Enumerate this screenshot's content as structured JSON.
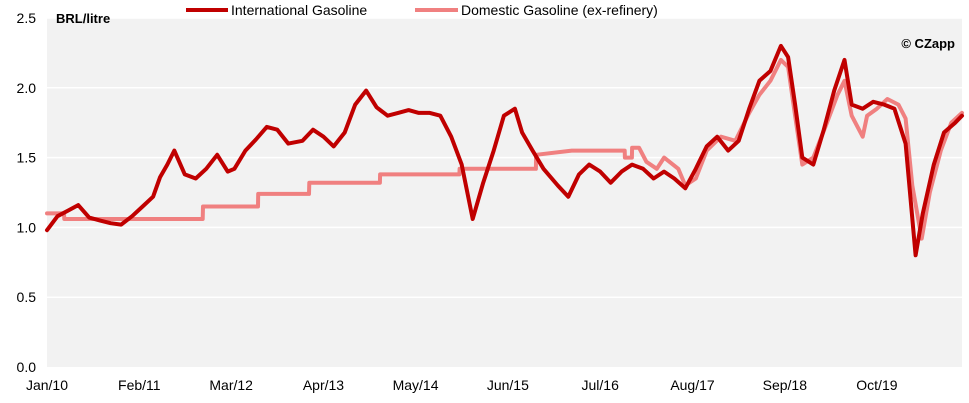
{
  "chart_data": {
    "type": "line",
    "ylabel": "BRL/litre",
    "credit": "© CZapp",
    "ylim": [
      0,
      2.5
    ],
    "yticks": [
      "0.0",
      "0.5",
      "1.0",
      "1.5",
      "2.0",
      "2.5"
    ],
    "ytick_values": [
      0,
      0.5,
      1.0,
      1.5,
      2.0,
      2.5
    ],
    "xlim": [
      "2010-01-01",
      "2020-09-30"
    ],
    "xticks": [
      {
        "date": "2010-01-01",
        "label": "Jan/10"
      },
      {
        "date": "2011-02-01",
        "label": "Feb/11"
      },
      {
        "date": "2012-03-01",
        "label": "Mar/12"
      },
      {
        "date": "2013-04-01",
        "label": "Apr/13"
      },
      {
        "date": "2014-05-01",
        "label": "May/14"
      },
      {
        "date": "2015-06-01",
        "label": "Jun/15"
      },
      {
        "date": "2016-07-01",
        "label": "Jul/16"
      },
      {
        "date": "2017-08-01",
        "label": "Aug/17"
      },
      {
        "date": "2018-09-01",
        "label": "Sep/18"
      },
      {
        "date": "2019-10-01",
        "label": "Oct/19"
      }
    ],
    "grid": "horizontal",
    "legend_position": "top",
    "colors": {
      "international": "#C00000",
      "domestic": "#F08080",
      "plot_background": "#F2F2F2",
      "gridline": "#FFFFFF"
    },
    "series": [
      {
        "name": "International Gasoline",
        "color": "#C00000",
        "points": [
          [
            "2010-01-01",
            0.98
          ],
          [
            "2010-02-15",
            1.08
          ],
          [
            "2010-04-01",
            1.12
          ],
          [
            "2010-05-15",
            1.16
          ],
          [
            "2010-07-01",
            1.07
          ],
          [
            "2010-08-15",
            1.05
          ],
          [
            "2010-10-01",
            1.03
          ],
          [
            "2010-11-15",
            1.02
          ],
          [
            "2011-01-01",
            1.08
          ],
          [
            "2011-02-15",
            1.15
          ],
          [
            "2011-04-01",
            1.22
          ],
          [
            "2011-05-01",
            1.36
          ],
          [
            "2011-06-01",
            1.45
          ],
          [
            "2011-07-01",
            1.55
          ],
          [
            "2011-08-15",
            1.38
          ],
          [
            "2011-10-01",
            1.35
          ],
          [
            "2011-11-15",
            1.42
          ],
          [
            "2012-01-01",
            1.52
          ],
          [
            "2012-02-15",
            1.4
          ],
          [
            "2012-03-15",
            1.42
          ],
          [
            "2012-05-01",
            1.55
          ],
          [
            "2012-06-15",
            1.63
          ],
          [
            "2012-08-01",
            1.72
          ],
          [
            "2012-09-15",
            1.7
          ],
          [
            "2012-11-01",
            1.6
          ],
          [
            "2013-01-01",
            1.62
          ],
          [
            "2013-02-15",
            1.7
          ],
          [
            "2013-04-01",
            1.65
          ],
          [
            "2013-05-15",
            1.58
          ],
          [
            "2013-07-01",
            1.68
          ],
          [
            "2013-08-15",
            1.88
          ],
          [
            "2013-10-01",
            1.98
          ],
          [
            "2013-11-15",
            1.86
          ],
          [
            "2014-01-01",
            1.8
          ],
          [
            "2014-02-15",
            1.82
          ],
          [
            "2014-04-01",
            1.84
          ],
          [
            "2014-05-15",
            1.82
          ],
          [
            "2014-07-01",
            1.82
          ],
          [
            "2014-08-15",
            1.8
          ],
          [
            "2014-10-01",
            1.65
          ],
          [
            "2014-11-15",
            1.45
          ],
          [
            "2015-01-01",
            1.06
          ],
          [
            "2015-02-15",
            1.32
          ],
          [
            "2015-04-01",
            1.55
          ],
          [
            "2015-05-15",
            1.8
          ],
          [
            "2015-07-01",
            1.85
          ],
          [
            "2015-08-01",
            1.68
          ],
          [
            "2015-09-15",
            1.55
          ],
          [
            "2015-11-01",
            1.42
          ],
          [
            "2016-01-01",
            1.3
          ],
          [
            "2016-02-15",
            1.22
          ],
          [
            "2016-04-01",
            1.38
          ],
          [
            "2016-05-15",
            1.45
          ],
          [
            "2016-07-01",
            1.4
          ],
          [
            "2016-08-15",
            1.32
          ],
          [
            "2016-10-01",
            1.4
          ],
          [
            "2016-11-15",
            1.45
          ],
          [
            "2017-01-01",
            1.42
          ],
          [
            "2017-02-15",
            1.35
          ],
          [
            "2017-04-01",
            1.4
          ],
          [
            "2017-05-15",
            1.35
          ],
          [
            "2017-07-01",
            1.28
          ],
          [
            "2017-08-15",
            1.42
          ],
          [
            "2017-10-01",
            1.58
          ],
          [
            "2017-11-15",
            1.65
          ],
          [
            "2018-01-01",
            1.55
          ],
          [
            "2018-02-15",
            1.62
          ],
          [
            "2018-04-01",
            1.85
          ],
          [
            "2018-05-15",
            2.05
          ],
          [
            "2018-07-01",
            2.12
          ],
          [
            "2018-08-15",
            2.3
          ],
          [
            "2018-09-15",
            2.22
          ],
          [
            "2018-10-15",
            1.88
          ],
          [
            "2018-11-15",
            1.5
          ],
          [
            "2019-01-01",
            1.45
          ],
          [
            "2019-02-15",
            1.7
          ],
          [
            "2019-04-01",
            1.98
          ],
          [
            "2019-05-15",
            2.2
          ],
          [
            "2019-06-15",
            1.88
          ],
          [
            "2019-08-01",
            1.85
          ],
          [
            "2019-09-15",
            1.9
          ],
          [
            "2019-11-01",
            1.88
          ],
          [
            "2019-12-15",
            1.85
          ],
          [
            "2020-02-01",
            1.6
          ],
          [
            "2020-03-15",
            0.8
          ],
          [
            "2020-04-15",
            1.1
          ],
          [
            "2020-06-01",
            1.45
          ],
          [
            "2020-07-15",
            1.68
          ],
          [
            "2020-09-01",
            1.75
          ],
          [
            "2020-09-30",
            1.8
          ]
        ]
      },
      {
        "name": "Domestic Gasoline (ex-refinery)",
        "color": "#F08080",
        "points": [
          [
            "2010-01-01",
            1.1
          ],
          [
            "2010-03-15",
            1.1
          ],
          [
            "2010-03-16",
            1.06
          ],
          [
            "2011-10-31",
            1.06
          ],
          [
            "2011-11-01",
            1.15
          ],
          [
            "2012-06-24",
            1.15
          ],
          [
            "2012-06-25",
            1.24
          ],
          [
            "2013-01-29",
            1.24
          ],
          [
            "2013-01-30",
            1.32
          ],
          [
            "2013-11-29",
            1.32
          ],
          [
            "2013-11-30",
            1.38
          ],
          [
            "2014-11-05",
            1.38
          ],
          [
            "2014-11-06",
            1.42
          ],
          [
            "2015-09-29",
            1.42
          ],
          [
            "2015-09-30",
            1.52
          ],
          [
            "2016-03-01",
            1.55
          ],
          [
            "2016-10-14",
            1.55
          ],
          [
            "2016-10-15",
            1.5
          ],
          [
            "2016-11-14",
            1.5
          ],
          [
            "2016-11-15",
            1.57
          ],
          [
            "2016-12-15",
            1.57
          ],
          [
            "2017-01-15",
            1.47
          ],
          [
            "2017-03-01",
            1.42
          ],
          [
            "2017-04-01",
            1.5
          ],
          [
            "2017-06-01",
            1.42
          ],
          [
            "2017-07-01",
            1.3
          ],
          [
            "2017-08-15",
            1.35
          ],
          [
            "2017-10-01",
            1.55
          ],
          [
            "2017-12-01",
            1.65
          ],
          [
            "2018-02-01",
            1.62
          ],
          [
            "2018-04-01",
            1.82
          ],
          [
            "2018-05-15",
            1.95
          ],
          [
            "2018-07-01",
            2.05
          ],
          [
            "2018-08-15",
            2.2
          ],
          [
            "2018-09-15",
            2.15
          ],
          [
            "2018-10-15",
            1.8
          ],
          [
            "2018-11-15",
            1.45
          ],
          [
            "2019-01-01",
            1.5
          ],
          [
            "2019-03-01",
            1.75
          ],
          [
            "2019-04-15",
            1.95
          ],
          [
            "2019-05-15",
            2.05
          ],
          [
            "2019-06-15",
            1.8
          ],
          [
            "2019-08-01",
            1.65
          ],
          [
            "2019-08-20",
            1.8
          ],
          [
            "2019-10-01",
            1.85
          ],
          [
            "2019-11-15",
            1.92
          ],
          [
            "2020-01-01",
            1.88
          ],
          [
            "2020-02-01",
            1.78
          ],
          [
            "2020-03-01",
            1.3
          ],
          [
            "2020-04-10",
            0.92
          ],
          [
            "2020-05-15",
            1.25
          ],
          [
            "2020-07-01",
            1.55
          ],
          [
            "2020-08-15",
            1.75
          ],
          [
            "2020-09-30",
            1.82
          ]
        ]
      }
    ]
  }
}
